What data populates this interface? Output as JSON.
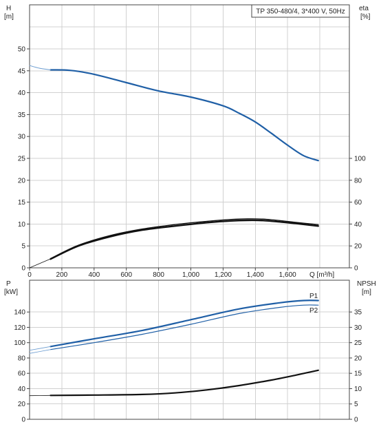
{
  "chart_data": [
    {
      "type": "line",
      "title": "TP 350-480/4, 3*400 V, 50Hz",
      "xlabel": "Q [m³/h]",
      "x_ticks": [
        "0",
        "200",
        "400",
        "600",
        "800",
        "1,000",
        "1,200",
        "1,400",
        "1,600"
      ],
      "xlim": [
        0,
        1800
      ],
      "y_left": {
        "label_top": "H",
        "label_bottom": "[m]",
        "ylim": [
          0,
          55
        ],
        "ticks": [
          "0",
          "5",
          "10",
          "15",
          "20",
          "25",
          "30",
          "35",
          "40",
          "45",
          "50"
        ]
      },
      "y_right": {
        "label_top": "eta",
        "label_bottom": "[%]",
        "ylim": [
          0,
          110
        ],
        "ticks": [
          "0",
          "20",
          "40",
          "60",
          "80",
          "100"
        ]
      },
      "grid": true,
      "series": [
        {
          "axis": "left",
          "color": "#1f5fa6",
          "width": 2.2,
          "x": [
            130,
            250,
            400,
            600,
            800,
            1000,
            1200,
            1300,
            1400,
            1500,
            1600,
            1700,
            1790
          ],
          "y": [
            45.2,
            45.1,
            44.2,
            42.3,
            40.4,
            39.0,
            37.0,
            35.3,
            33.3,
            30.7,
            28.0,
            25.6,
            24.5
          ]
        },
        {
          "axis": "left",
          "color": "#6a9bd0",
          "width": 1,
          "x": [
            0,
            60,
            130
          ],
          "y": [
            46.2,
            45.6,
            45.2
          ]
        },
        {
          "axis": "right",
          "color": "#111111",
          "width": 1.4,
          "x": [
            130,
            300,
            500,
            700,
            900,
            1100,
            1250,
            1350,
            1450,
            1550,
            1650,
            1790
          ],
          "y": [
            8.5,
            20.5,
            29.5,
            35.5,
            39.5,
            42.5,
            44.2,
            44.8,
            44.5,
            43.2,
            41.5,
            39.5
          ]
        },
        {
          "axis": "right",
          "color": "#111111",
          "width": 2.4,
          "x": [
            130,
            300,
            500,
            700,
            900,
            1100,
            1250,
            1350,
            1450,
            1550,
            1650,
            1790
          ],
          "y": [
            8.0,
            19.8,
            28.5,
            34.5,
            38.2,
            41.3,
            42.9,
            43.4,
            43.2,
            42.0,
            40.5,
            38.2
          ]
        },
        {
          "axis": "right",
          "color": "#111111",
          "width": 0.8,
          "x": [
            0,
            130
          ],
          "y": [
            0,
            8.2
          ]
        }
      ]
    },
    {
      "type": "line",
      "title": "",
      "xlabel": "",
      "xlim": [
        0,
        1800
      ],
      "y_left": {
        "label_top": "P",
        "label_bottom": "[kW]",
        "ylim": [
          0,
          160
        ],
        "ticks": [
          "0",
          "20",
          "40",
          "60",
          "80",
          "100",
          "120",
          "140"
        ]
      },
      "y_right": {
        "label_top": "NPSH",
        "label_bottom": "[m]",
        "ylim": [
          0,
          40
        ],
        "ticks": [
          "0",
          "5",
          "10",
          "15",
          "20",
          "25",
          "30",
          "35"
        ]
      },
      "grid": true,
      "legend": [
        "P1",
        "P2"
      ],
      "series": [
        {
          "name": "P1",
          "axis": "left",
          "color": "#1f5fa6",
          "width": 2.2,
          "x": [
            130,
            400,
            700,
            1000,
            1300,
            1550,
            1700,
            1790
          ],
          "y": [
            95,
            105,
            116,
            130,
            144,
            152,
            155,
            155
          ]
        },
        {
          "name": "P2",
          "axis": "left",
          "color": "#1f5fa6",
          "width": 1.2,
          "x": [
            130,
            400,
            700,
            1000,
            1300,
            1550,
            1700,
            1790
          ],
          "y": [
            91,
            100,
            111,
            124,
            138,
            146,
            149,
            149
          ]
        },
        {
          "axis": "left",
          "color": "#6a9bd0",
          "width": 0.8,
          "x": [
            0,
            130
          ],
          "y": [
            90,
            95
          ]
        },
        {
          "axis": "left",
          "color": "#6a9bd0",
          "width": 0.8,
          "x": [
            0,
            130
          ],
          "y": [
            86,
            91
          ]
        },
        {
          "axis": "right",
          "color": "#111111",
          "width": 2.2,
          "x": [
            130,
            400,
            700,
            900,
            1100,
            1300,
            1500,
            1650,
            1790
          ],
          "y": [
            7.8,
            7.9,
            8.1,
            8.6,
            9.6,
            11.0,
            12.8,
            14.4,
            16.0
          ]
        },
        {
          "axis": "right",
          "color": "#111111",
          "width": 0.8,
          "x": [
            0,
            130
          ],
          "y": [
            7.7,
            7.8
          ]
        }
      ]
    }
  ]
}
